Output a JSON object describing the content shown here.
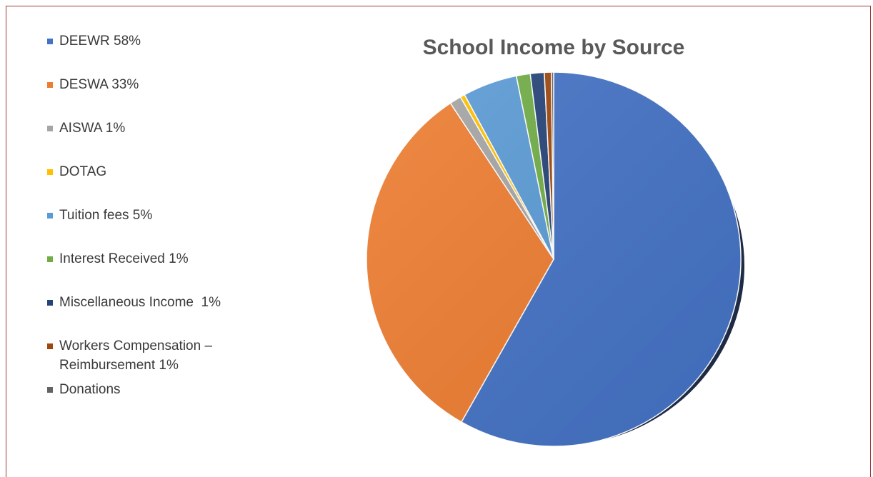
{
  "colors": {
    "border": "#a23a3a",
    "legend_text": "#3a3a3a",
    "title_text": "#595959"
  },
  "chart_data": {
    "type": "pie",
    "title": "School Income by Source",
    "legend_placement": "left",
    "start_angle_deg": 0,
    "direction": "clockwise",
    "slices": [
      {
        "label": "DEEWR 58%",
        "value": 58.2,
        "color": "#4472c4"
      },
      {
        "label": "DESWA 33%",
        "value": 32.5,
        "color": "#ed7d31"
      },
      {
        "label": "AISWA 1%",
        "value": 1.0,
        "color": "#a5a5a5"
      },
      {
        "label": "DOTAG",
        "value": 0.4,
        "color": "#ffc000"
      },
      {
        "label": "Tuition fees 5%",
        "value": 4.7,
        "color": "#5b9bd5"
      },
      {
        "label": "Interest Received 1%",
        "value": 1.2,
        "color": "#70ad47"
      },
      {
        "label": "Miscellaneous Income  1%",
        "value": 1.2,
        "color": "#264478"
      },
      {
        "label": "Workers Compensation –\nReimbursement 1%",
        "value": 0.6,
        "color": "#9e480e"
      },
      {
        "label": "Donations",
        "value": 0.2,
        "color": "#636363"
      }
    ]
  }
}
